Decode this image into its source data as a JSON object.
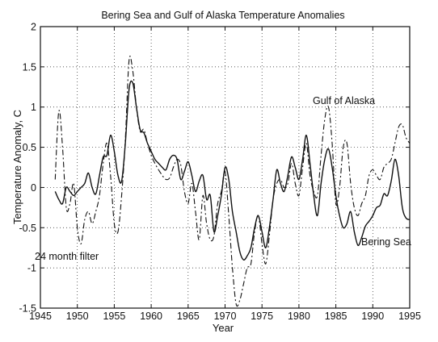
{
  "chart_data": {
    "type": "line",
    "title": "Bering Sea  and Gulf of Alaska Temperature Anomalies",
    "xlabel": "Year",
    "ylabel": "Temperature Anomaly, C",
    "xlim": [
      1945,
      1995
    ],
    "ylim": [
      -1.5,
      2
    ],
    "xticks": [
      1945,
      1950,
      1955,
      1960,
      1965,
      1970,
      1975,
      1980,
      1985,
      1990,
      1995
    ],
    "yticks": [
      -1.5,
      -1,
      -0.5,
      0,
      0.5,
      1,
      1.5,
      2
    ],
    "xtick_labels": [
      "1945",
      "1950",
      "1955",
      "1960",
      "1965",
      "1970",
      "1975",
      "1980",
      "1985",
      "1990",
      "1995"
    ],
    "ytick_labels": [
      "-1.5",
      "-1",
      "-0.5",
      "0",
      "0.5",
      "1",
      "1.5",
      "2"
    ],
    "grid": true,
    "annotations": [
      {
        "text": "Gulf of Alaska",
        "x": 1985,
        "y": 1.04
      },
      {
        "text": "Bering Sea",
        "x": 1891.5,
        "y": 0
      },
      {
        "text": "24 month filter",
        "x": 1950.5,
        "y": -0.85
      }
    ],
    "series": [
      {
        "name": "Bering Sea",
        "style": "solid",
        "x": [
          1947.0,
          1947.5,
          1948.0,
          1948.5,
          1949.0,
          1949.5,
          1950.0,
          1950.5,
          1951.0,
          1951.5,
          1952.0,
          1952.5,
          1953.0,
          1953.5,
          1954.0,
          1954.5,
          1955.0,
          1955.5,
          1956.0,
          1956.5,
          1957.0,
          1957.5,
          1958.0,
          1958.5,
          1959.0,
          1959.5,
          1960.0,
          1960.5,
          1961.0,
          1961.5,
          1962.0,
          1962.5,
          1963.0,
          1963.5,
          1964.0,
          1964.5,
          1965.0,
          1965.5,
          1966.0,
          1966.5,
          1967.0,
          1967.5,
          1968.0,
          1968.5,
          1969.0,
          1969.5,
          1970.0,
          1970.5,
          1971.0,
          1971.5,
          1972.0,
          1972.5,
          1973.0,
          1973.5,
          1974.0,
          1974.5,
          1975.0,
          1975.5,
          1976.0,
          1976.5,
          1977.0,
          1977.5,
          1978.0,
          1978.5,
          1979.0,
          1979.5,
          1980.0,
          1980.5,
          1981.0,
          1981.5,
          1982.0,
          1982.5,
          1983.0,
          1983.5,
          1984.0,
          1984.5,
          1985.0,
          1985.5,
          1986.0,
          1986.5,
          1987.0,
          1987.5,
          1988.0,
          1988.5,
          1989.0,
          1989.5,
          1990.0,
          1990.5,
          1991.0,
          1991.5,
          1992.0,
          1992.5,
          1993.0,
          1993.5,
          1994.0,
          1994.5,
          1995.0
        ],
        "y": [
          -0.05,
          -0.15,
          -0.2,
          0.0,
          -0.05,
          -0.1,
          -0.05,
          0.0,
          0.05,
          0.18,
          0.0,
          -0.08,
          0.15,
          0.38,
          0.4,
          0.65,
          0.45,
          0.15,
          0.08,
          0.55,
          1.22,
          1.3,
          1.0,
          0.72,
          0.68,
          0.55,
          0.45,
          0.35,
          0.3,
          0.25,
          0.22,
          0.35,
          0.4,
          0.35,
          0.1,
          0.2,
          0.32,
          0.15,
          -0.05,
          0.08,
          0.15,
          -0.15,
          -0.1,
          -0.55,
          -0.35,
          -0.1,
          0.25,
          0.1,
          -0.3,
          -0.55,
          -0.8,
          -0.9,
          -0.85,
          -0.75,
          -0.5,
          -0.35,
          -0.55,
          -0.75,
          -0.5,
          -0.15,
          0.22,
          0.05,
          -0.05,
          0.15,
          0.38,
          0.25,
          0.1,
          0.35,
          0.65,
          0.3,
          -0.1,
          -0.35,
          0.05,
          0.35,
          0.48,
          0.25,
          -0.1,
          -0.35,
          -0.5,
          -0.45,
          -0.3,
          -0.55,
          -0.72,
          -0.62,
          -0.48,
          -0.42,
          -0.35,
          -0.25,
          -0.22,
          -0.08,
          -0.1,
          0.08,
          0.35,
          0.15,
          -0.25,
          -0.38,
          -0.4
        ]
      },
      {
        "name": "Gulf of Alaska",
        "style": "dashed",
        "x": [
          1947.0,
          1947.5,
          1948.0,
          1948.5,
          1949.0,
          1949.5,
          1950.0,
          1950.5,
          1951.0,
          1951.5,
          1952.0,
          1952.5,
          1953.0,
          1953.5,
          1954.0,
          1954.5,
          1955.0,
          1955.5,
          1956.0,
          1956.5,
          1957.0,
          1957.5,
          1958.0,
          1958.5,
          1959.0,
          1959.5,
          1960.0,
          1960.5,
          1961.0,
          1961.5,
          1962.0,
          1962.5,
          1963.0,
          1963.5,
          1964.0,
          1964.5,
          1965.0,
          1965.5,
          1966.0,
          1966.5,
          1967.0,
          1967.5,
          1968.0,
          1968.5,
          1969.0,
          1969.5,
          1970.0,
          1970.5,
          1971.0,
          1971.5,
          1972.0,
          1972.5,
          1973.0,
          1973.5,
          1974.0,
          1974.5,
          1975.0,
          1975.5,
          1976.0,
          1976.5,
          1977.0,
          1977.5,
          1978.0,
          1978.5,
          1979.0,
          1979.5,
          1980.0,
          1980.5,
          1981.0,
          1981.5,
          1982.0,
          1982.5,
          1983.0,
          1983.5,
          1984.0,
          1984.5,
          1985.0,
          1985.5,
          1986.0,
          1986.5,
          1987.0,
          1987.5,
          1988.0,
          1988.5,
          1989.0,
          1989.5,
          1990.0,
          1990.5,
          1991.0,
          1991.5,
          1992.0,
          1992.5,
          1993.0,
          1993.5,
          1994.0,
          1994.5,
          1995.0
        ],
        "y": [
          0.1,
          0.95,
          0.5,
          -0.25,
          -0.2,
          0.05,
          -0.5,
          -0.7,
          -0.4,
          -0.3,
          -0.45,
          -0.3,
          -0.1,
          0.3,
          0.55,
          0.15,
          -0.45,
          -0.55,
          -0.1,
          0.6,
          1.58,
          1.45,
          1.0,
          0.7,
          0.72,
          0.55,
          0.4,
          0.3,
          0.22,
          0.15,
          0.1,
          0.12,
          0.25,
          0.35,
          0.28,
          -0.05,
          -0.2,
          0.05,
          -0.3,
          -0.65,
          -0.1,
          -0.45,
          -0.65,
          -0.6,
          -0.2,
          -0.05,
          0.2,
          -0.35,
          -1.0,
          -1.45,
          -1.4,
          -1.2,
          -1.0,
          -0.95,
          -0.55,
          -0.35,
          -0.7,
          -0.95,
          -0.6,
          -0.15,
          0.05,
          0.1,
          0.0,
          0.05,
          0.3,
          0.05,
          -0.1,
          0.25,
          0.55,
          0.15,
          -0.05,
          -0.1,
          0.4,
          0.85,
          1.0,
          0.55,
          -0.2,
          0.0,
          0.5,
          0.55,
          0.05,
          -0.25,
          -0.35,
          -0.2,
          -0.1,
          0.15,
          0.22,
          0.15,
          0.1,
          0.25,
          0.3,
          0.35,
          0.55,
          0.75,
          0.78,
          0.62,
          0.55
        ]
      }
    ]
  }
}
